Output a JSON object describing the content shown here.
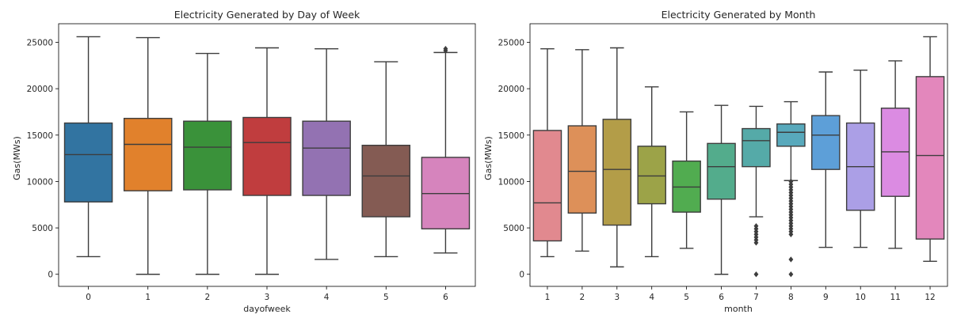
{
  "chart_data": [
    {
      "type": "box",
      "title": "Electricity Generated by Day of Week",
      "xlabel": "dayofweek",
      "ylabel": "Gas(MWs)",
      "ylim": [
        -1300,
        27000
      ],
      "yticks": [
        0,
        5000,
        10000,
        15000,
        20000,
        25000
      ],
      "categories": [
        "0",
        "1",
        "2",
        "3",
        "4",
        "5",
        "6"
      ],
      "colors": [
        "#3274a1",
        "#e1812c",
        "#3a923a",
        "#c03d3e",
        "#9372b2",
        "#845b53",
        "#d684bd"
      ],
      "boxes": [
        {
          "whislo": 1900,
          "q1": 7800,
          "med": 12900,
          "q3": 16300,
          "whishi": 25600,
          "fliers": []
        },
        {
          "whislo": 0,
          "q1": 9000,
          "med": 14000,
          "q3": 16800,
          "whishi": 25500,
          "fliers": []
        },
        {
          "whislo": 0,
          "q1": 9100,
          "med": 13700,
          "q3": 16500,
          "whishi": 23800,
          "fliers": []
        },
        {
          "whislo": 0,
          "q1": 8500,
          "med": 14200,
          "q3": 16900,
          "whishi": 24400,
          "fliers": []
        },
        {
          "whislo": 1600,
          "q1": 8500,
          "med": 13600,
          "q3": 16500,
          "whishi": 24300,
          "fliers": []
        },
        {
          "whislo": 1900,
          "q1": 6200,
          "med": 10600,
          "q3": 13900,
          "whishi": 22900,
          "fliers": []
        },
        {
          "whislo": 2300,
          "q1": 4900,
          "med": 8700,
          "q3": 12600,
          "whishi": 23900,
          "fliers": [
            24100,
            24300
          ]
        }
      ]
    },
    {
      "type": "box",
      "title": "Electricity Generated by Month",
      "xlabel": "month",
      "ylabel": "Gas(MWs)",
      "ylim": [
        -1300,
        27000
      ],
      "yticks": [
        0,
        5000,
        10000,
        15000,
        20000,
        25000
      ],
      "categories": [
        "1",
        "2",
        "3",
        "4",
        "5",
        "6",
        "7",
        "8",
        "9",
        "10",
        "11",
        "12"
      ],
      "colors": [
        "#e1898f",
        "#dd9059",
        "#b39d48",
        "#9ca348",
        "#51ac50",
        "#53ac8c",
        "#55aaa8",
        "#58a9bc",
        "#5d9fd8",
        "#ab9fe6",
        "#db8be2",
        "#e387bc"
      ],
      "boxes": [
        {
          "whislo": 1900,
          "q1": 3600,
          "med": 7700,
          "q3": 15500,
          "whishi": 24300,
          "fliers": []
        },
        {
          "whislo": 2500,
          "q1": 6600,
          "med": 11100,
          "q3": 16000,
          "whishi": 24200,
          "fliers": []
        },
        {
          "whislo": 800,
          "q1": 5300,
          "med": 11300,
          "q3": 16700,
          "whishi": 24400,
          "fliers": []
        },
        {
          "whislo": 1900,
          "q1": 7600,
          "med": 10600,
          "q3": 13800,
          "whishi": 20200,
          "fliers": []
        },
        {
          "whislo": 2800,
          "q1": 6700,
          "med": 9400,
          "q3": 12200,
          "whishi": 17500,
          "fliers": []
        },
        {
          "whislo": 0,
          "q1": 8100,
          "med": 11600,
          "q3": 14100,
          "whishi": 18200,
          "fliers": []
        },
        {
          "whislo": 6200,
          "q1": 11600,
          "med": 14400,
          "q3": 15700,
          "whishi": 18100,
          "fliers": [
            0,
            3400,
            3700,
            4000,
            4300,
            4600,
            4900,
            5200
          ]
        },
        {
          "whislo": 10100,
          "q1": 13800,
          "med": 15300,
          "q3": 16200,
          "whishi": 18600,
          "fliers": [
            0,
            1600,
            4300,
            4600,
            4900,
            5200,
            5500,
            5800,
            6100,
            6400,
            6700,
            7000,
            7300,
            7600,
            7900,
            8200,
            8500,
            8800,
            9100,
            9400,
            9700,
            10000
          ]
        },
        {
          "whislo": 2900,
          "q1": 11300,
          "med": 15000,
          "q3": 17100,
          "whishi": 21800,
          "fliers": []
        },
        {
          "whislo": 2900,
          "q1": 6900,
          "med": 11600,
          "q3": 16300,
          "whishi": 22000,
          "fliers": []
        },
        {
          "whislo": 2800,
          "q1": 8400,
          "med": 13200,
          "q3": 17900,
          "whishi": 23000,
          "fliers": []
        },
        {
          "whislo": 1400,
          "q1": 3800,
          "med": 12800,
          "q3": 21300,
          "whishi": 25600,
          "fliers": []
        }
      ]
    }
  ]
}
